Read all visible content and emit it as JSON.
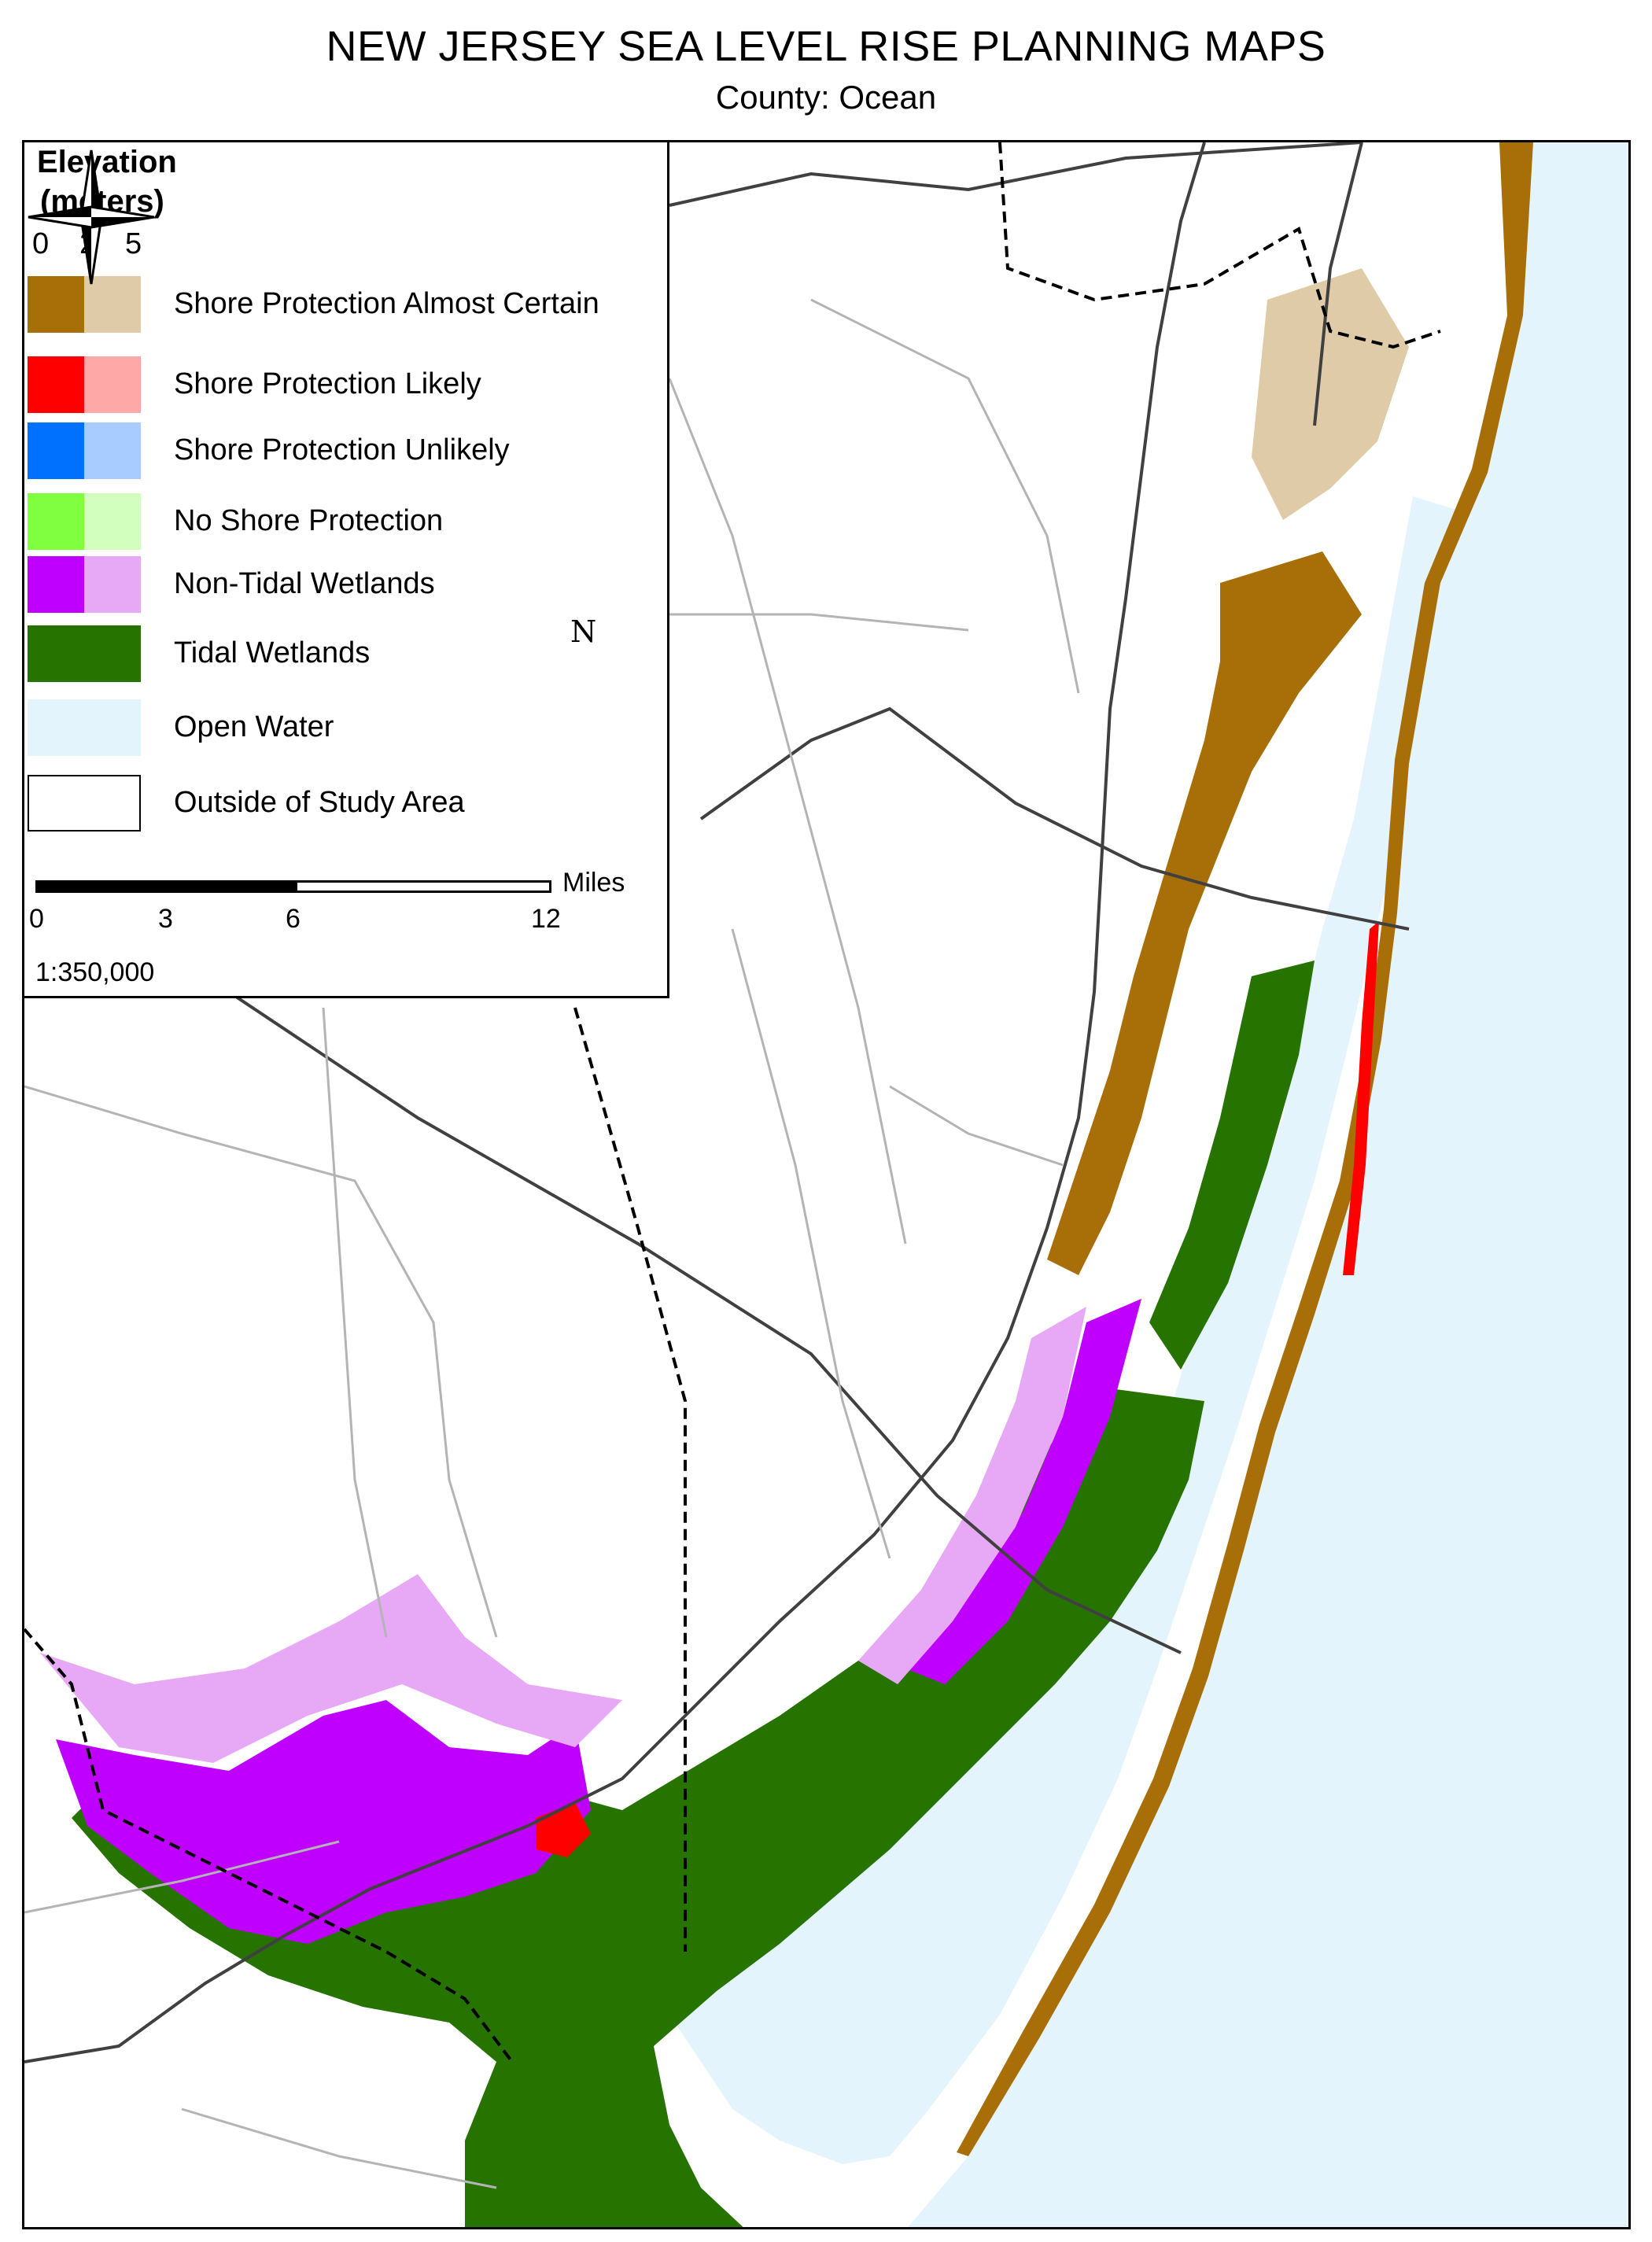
{
  "header": {
    "title": "NEW JERSEY SEA LEVEL RISE PLANNING MAPS",
    "subtitle": "County:  Ocean"
  },
  "legend": {
    "title_line1": "Elevation",
    "title_line2": "(meters)",
    "elevation_ticks": [
      "0",
      "2",
      "5"
    ],
    "items": [
      {
        "label": "Shore Protection Almost Certain",
        "low": "#a86f08",
        "high": "#e0cba8"
      },
      {
        "label": "Shore Protection Likely",
        "low": "#ff0000",
        "high": "#ffa8a8"
      },
      {
        "label": "Shore Protection Unlikely",
        "low": "#0070ff",
        "high": "#a8ccff"
      },
      {
        "label": "No Shore Protection",
        "low": "#7fff3f",
        "high": "#d2ffbe"
      },
      {
        "label": "Non-Tidal Wetlands",
        "low": "#c000ff",
        "high": "#e7a8f5"
      },
      {
        "label": "Tidal Wetlands",
        "low": "#267300",
        "high": "#267300"
      },
      {
        "label": "Open Water",
        "low": "#e3f4fc",
        "high": "#e3f4fc"
      },
      {
        "label": "Outside of Study Area",
        "low": "#ffffff",
        "high": "#ffffff"
      }
    ],
    "scale": {
      "ticks": [
        "0",
        "3",
        "6",
        "12"
      ],
      "unit": "Miles",
      "ratio": "1:350,000"
    },
    "north_label": "N"
  },
  "map_colors": {
    "water": "#e3f4fc",
    "road_minor": "#b4b4b4",
    "road_major": "#404040",
    "county_line": "#e6d27a"
  }
}
